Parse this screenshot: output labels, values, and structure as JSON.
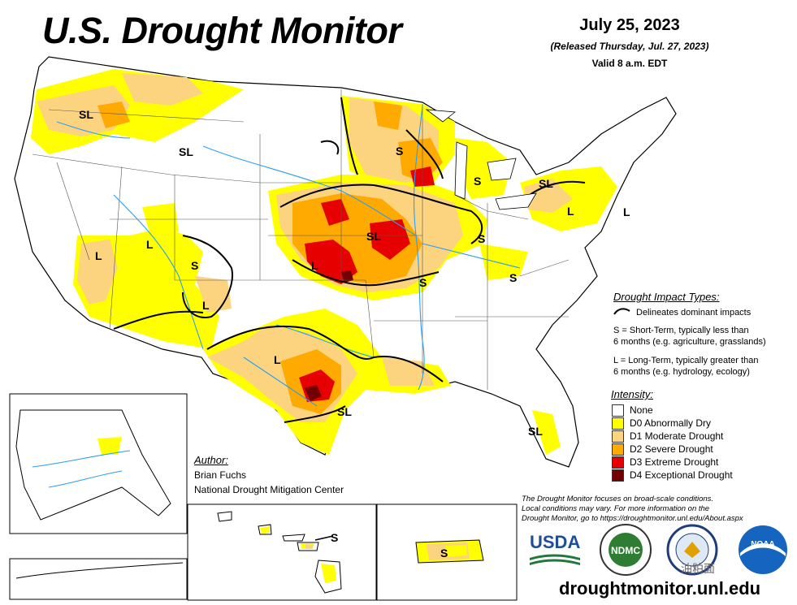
{
  "header": {
    "title": "U.S. Drought Monitor",
    "date": "July 25, 2023",
    "released": "(Released Thursday, Jul. 27, 2023)",
    "valid": "Valid 8 a.m. EDT"
  },
  "map_labels": {
    "sl_northwest": "SL",
    "sl_montana": "SL",
    "l_nevada": "L",
    "l_utah": "L",
    "s_utah": "S",
    "l_newmexico": "L",
    "l_texas": "L",
    "sl_texas": "SL",
    "l_kansas": "L",
    "sl_missouri": "SL",
    "s_missouri": "S",
    "s_illinois": "S",
    "s_wisconsin": "S",
    "s_michigan": "S",
    "sl_ohio": "SL",
    "l_pennsylvania": "L",
    "l_newjersey": "L",
    "s_carolina": "S",
    "sl_florida": "SL",
    "s_hawaii": "S",
    "s_puertorico": "S"
  },
  "impact_legend": {
    "title": "Drought Impact Types:",
    "line_desc": "Delineates dominant impacts",
    "s_line1": "S = Short-Term, typically less than",
    "s_line2": "6 months (e.g. agriculture, grasslands)",
    "l_line1": "L = Long-Term, typically greater than",
    "l_line2": "6 months (e.g. hydrology, ecology)"
  },
  "intensity_legend": {
    "title": "Intensity:",
    "items": [
      {
        "label": "None",
        "color": "#ffffff"
      },
      {
        "label": "D0 Abnormally Dry",
        "color": "#ffff00"
      },
      {
        "label": "D1 Moderate Drought",
        "color": "#fcd37f"
      },
      {
        "label": "D2 Severe Drought",
        "color": "#ffaa00"
      },
      {
        "label": "D3 Extreme Drought",
        "color": "#e60000"
      },
      {
        "label": "D4 Exceptional Drought",
        "color": "#730000"
      }
    ]
  },
  "author": {
    "title": "Author:",
    "name": "Brian Fuchs",
    "org": "National Drought Mitigation Center"
  },
  "note": {
    "line1": "The Drought Monitor focuses on broad-scale conditions.",
    "line2": "Local conditions may vary. For more information on the",
    "line3": "Drought Monitor, go to https://droughtmonitor.unl.edu/About.aspx"
  },
  "logos": {
    "usda": "USDA",
    "ndmc": "NDMC",
    "noaa": "NOAA"
  },
  "url": "droughtmonitor.unl.edu",
  "watermark": "油粕面"
}
